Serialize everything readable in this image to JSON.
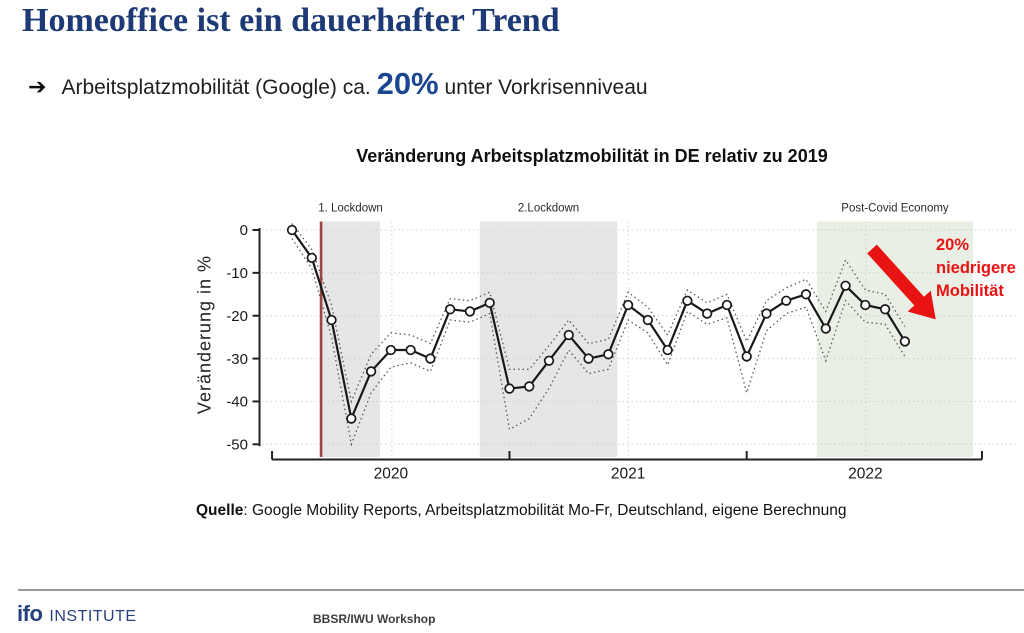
{
  "header": {
    "title": "Homeoffice ist ein dauerhafter Trend",
    "bullet": {
      "arrow": "➔",
      "text_before": "Arbeitsplatzmobilität (Google) ca. ",
      "highlight": "20%",
      "text_after": " unter Vorkrisenniveau"
    }
  },
  "colors": {
    "title_navy": "#1d3a76",
    "highlight_blue": "#1b4690",
    "annotation_red": "#ea1313",
    "lockdown_gray": "#e6e6e6",
    "postcovid_green": "#e9efe5",
    "event_line_maroon": "#9c4543",
    "footer_navy": "#26417e"
  },
  "chart_data": {
    "type": "line",
    "title": "Veränderung Arbeitsplatzmobilität in DE relativ zu 2019",
    "xlabel": "",
    "ylabel": "Veränderung in %",
    "ylim": [
      -52,
      2
    ],
    "yticks": [
      0,
      -10,
      -20,
      -30,
      -40,
      -50
    ],
    "grid": "dotted horizontal at each 10, dotted vertical at mid-year",
    "x_year_labels": [
      "2020",
      "2021",
      "2022"
    ],
    "year_label_positions": [
      5,
      17,
      29
    ],
    "year_tick_positions": [
      -1.01,
      11,
      23,
      34.9
    ],
    "midyear_gridline_positions": [
      5.05,
      17.02,
      29.03
    ],
    "x_unit": "month-index (monthly observations, 32 points)",
    "series": [
      {
        "name": "Veränderung Arbeitsplatzmobilität",
        "style": "solid-with-open-circles",
        "values": [
          0,
          -6.5,
          -21,
          -44,
          -33,
          -28,
          -28,
          -30,
          -18.5,
          -19,
          -17,
          -37,
          -36.5,
          -30.5,
          -24.5,
          -30,
          -29,
          -17.5,
          -21,
          -28,
          -16.5,
          -19.5,
          -17.5,
          -29.5,
          -19.5,
          -16.5,
          -15,
          -23,
          -13,
          -17.5,
          -18.5,
          -26
        ]
      },
      {
        "name": "Konfidenzband oben",
        "style": "dotted",
        "values": [
          1.5,
          -4.5,
          -17.5,
          -40,
          -29,
          -24,
          -24.5,
          -26.5,
          -16,
          -16.5,
          -14.5,
          -32.5,
          -32.5,
          -27,
          -21,
          -26.5,
          -25.5,
          -14.5,
          -18,
          -24.5,
          -14,
          -17,
          -15,
          -26,
          -16.5,
          -13.5,
          -11.5,
          -19,
          -7,
          -14,
          -15,
          -22.5
        ]
      },
      {
        "name": "Konfidenzband unten",
        "style": "dotted",
        "values": [
          -2,
          -9,
          -25,
          -50,
          -38,
          -32,
          -31,
          -33,
          -21,
          -21.5,
          -19.5,
          -46.5,
          -44,
          -37,
          -28,
          -33.5,
          -32.5,
          -21,
          -24,
          -31.5,
          -19,
          -22,
          -20.5,
          -38,
          -23.5,
          -19.5,
          -18,
          -30.5,
          -16.5,
          -21.5,
          -22,
          -29.5
        ]
      }
    ],
    "regions": [
      {
        "label": "1. Lockdown",
        "from": 1.47,
        "to": 4.45,
        "color": "#e6e6e6"
      },
      {
        "label": "2.Lockdown",
        "from": 9.5,
        "to": 16.45,
        "color": "#e6e6e6"
      },
      {
        "label": "Post-Covid Economy",
        "from": 26.55,
        "to": 34.45,
        "color": "#e9efe5"
      }
    ],
    "event_line": {
      "name": "Beginn 1. Lockdown",
      "position": 1.47,
      "color": "#9c4543"
    },
    "annotation": {
      "text": "20%\nniedrigere\nMobilität",
      "color": "#ea1313"
    },
    "legend_position": "none"
  },
  "source": {
    "label": "Quelle",
    "text": ": Google Mobility Reports, Arbeitsplatzmobilität Mo-Fr, Deutschland, eigene Berechnung"
  },
  "footer": {
    "logo_ifo": "ifo",
    "logo_institute": "INSTITUTE",
    "event": "BBSR/IWU Workshop"
  }
}
